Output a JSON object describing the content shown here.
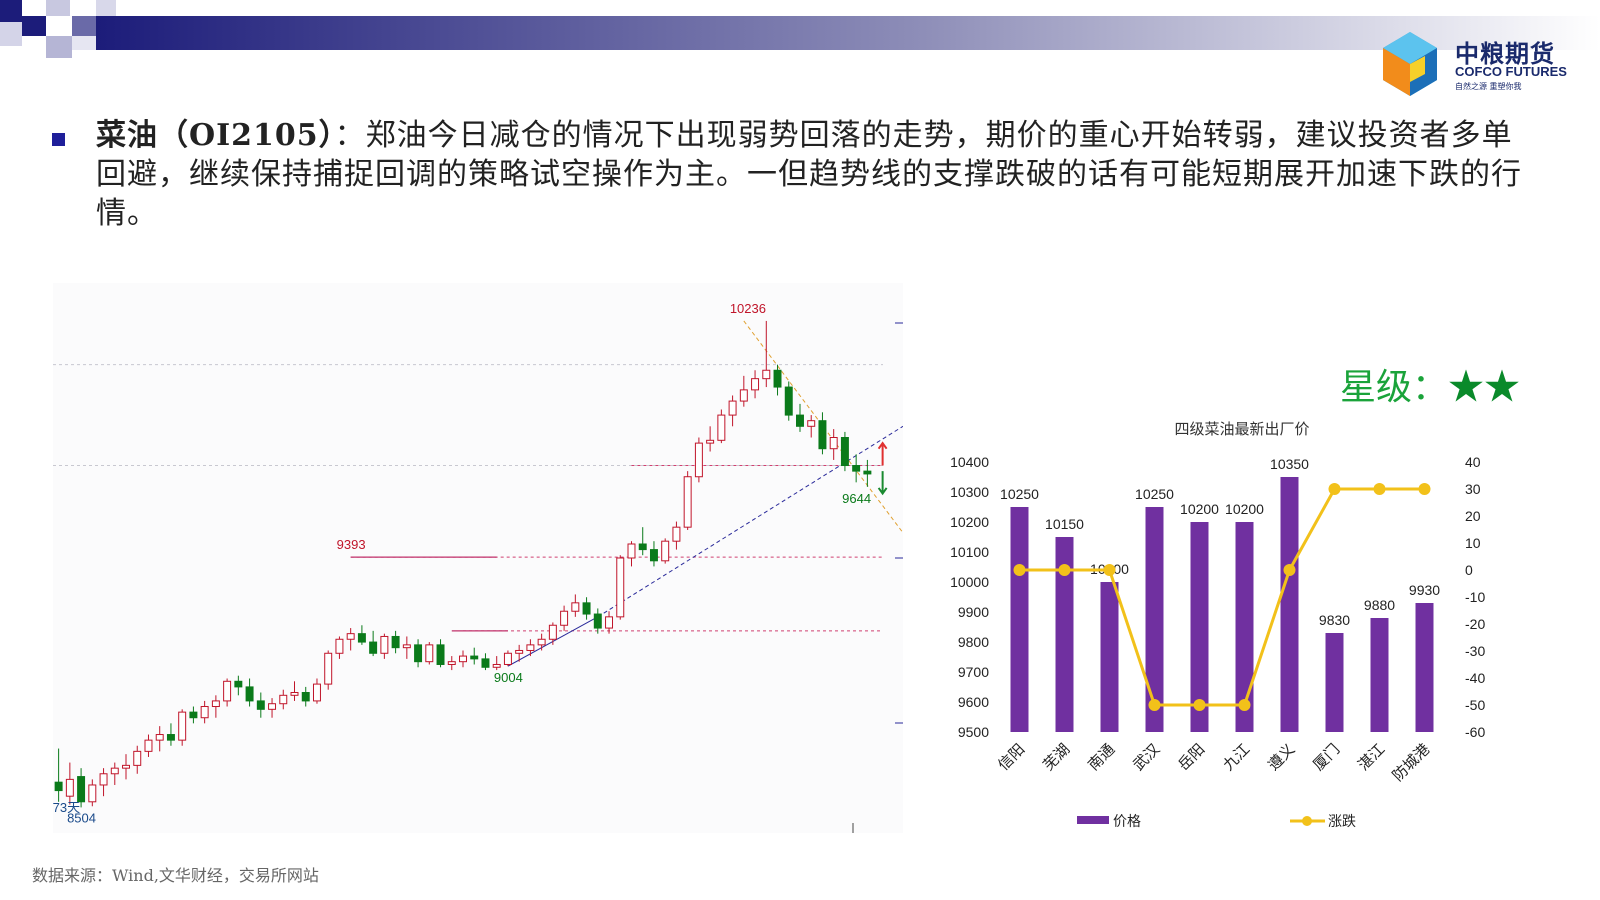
{
  "brand": {
    "name_cn": "中粮期货",
    "name_en": "COFCO FUTURES",
    "slogan": "自然之源 重塑你我"
  },
  "commentary": {
    "keyword": "菜油（OI2105）",
    "text": "：郑油今日减仓的情况下出现弱势回落的走势，期价的重心开始转弱，建议投资者多单回避，继续保持捕捉回调的策略试空操作为主。一但趋势线的支撑跌破的话有可能短期展开加速下跌的行情。"
  },
  "rating": {
    "label": "星级：",
    "stars": "★★"
  },
  "source": "数据来源：Wind,文华财经，交易所网站",
  "colors": {
    "up": "#c0152a",
    "down": "#0a7a1a",
    "bar": "#7030a0",
    "line": "#f2c11a",
    "bullet": "#1f1f9a"
  },
  "chart_data": [
    {
      "type": "candlestick",
      "annotations": [
        {
          "label": "10236",
          "x": 61,
          "y": 10236
        },
        {
          "label": "9393",
          "x": 26,
          "y": 9393
        },
        {
          "label": "9004",
          "x": 40,
          "y": 9004
        },
        {
          "label": "9644",
          "x": 71,
          "y": 9644
        },
        {
          "label": "8504",
          "x": 2,
          "y": 8504
        },
        {
          "label": "73天",
          "x": 0,
          "y": 8540
        }
      ],
      "ylim": [
        8480,
        10300
      ],
      "candles": [
        [
          8590,
          8710,
          8520,
          8560
        ],
        [
          8540,
          8660,
          8510,
          8600
        ],
        [
          8610,
          8640,
          8500,
          8520
        ],
        [
          8520,
          8600,
          8504,
          8580
        ],
        [
          8580,
          8640,
          8540,
          8620
        ],
        [
          8620,
          8660,
          8580,
          8640
        ],
        [
          8640,
          8690,
          8600,
          8650
        ],
        [
          8650,
          8720,
          8620,
          8700
        ],
        [
          8700,
          8760,
          8680,
          8740
        ],
        [
          8740,
          8790,
          8700,
          8760
        ],
        [
          8760,
          8800,
          8720,
          8740
        ],
        [
          8740,
          8850,
          8720,
          8840
        ],
        [
          8840,
          8860,
          8800,
          8820
        ],
        [
          8820,
          8880,
          8800,
          8860
        ],
        [
          8860,
          8900,
          8820,
          8880
        ],
        [
          8880,
          8960,
          8860,
          8950
        ],
        [
          8950,
          8970,
          8900,
          8930
        ],
        [
          8930,
          8960,
          8860,
          8880
        ],
        [
          8880,
          8910,
          8820,
          8850
        ],
        [
          8850,
          8890,
          8820,
          8870
        ],
        [
          8870,
          8920,
          8850,
          8900
        ],
        [
          8900,
          8950,
          8880,
          8910
        ],
        [
          8910,
          8930,
          8860,
          8880
        ],
        [
          8880,
          8960,
          8870,
          8940
        ],
        [
          8940,
          9060,
          8920,
          9050
        ],
        [
          9050,
          9110,
          9030,
          9100
        ],
        [
          9100,
          9140,
          9060,
          9120
        ],
        [
          9120,
          9150,
          9080,
          9090
        ],
        [
          9090,
          9130,
          9040,
          9050
        ],
        [
          9050,
          9120,
          9030,
          9110
        ],
        [
          9110,
          9130,
          9050,
          9070
        ],
        [
          9070,
          9110,
          9030,
          9080
        ],
        [
          9080,
          9100,
          9000,
          9020
        ],
        [
          9020,
          9090,
          9010,
          9080
        ],
        [
          9080,
          9100,
          9000,
          9010
        ],
        [
          9010,
          9040,
          8990,
          9020
        ],
        [
          9020,
          9060,
          9000,
          9040
        ],
        [
          9040,
          9070,
          9010,
          9030
        ],
        [
          9030,
          9050,
          8990,
          9000
        ],
        [
          9000,
          9040,
          8990,
          9010
        ],
        [
          9010,
          9060,
          9004,
          9050
        ],
        [
          9050,
          9080,
          9020,
          9060
        ],
        [
          9060,
          9100,
          9040,
          9080
        ],
        [
          9080,
          9120,
          9060,
          9100
        ],
        [
          9100,
          9160,
          9080,
          9150
        ],
        [
          9150,
          9220,
          9130,
          9200
        ],
        [
          9200,
          9260,
          9180,
          9230
        ],
        [
          9230,
          9250,
          9170,
          9190
        ],
        [
          9190,
          9210,
          9120,
          9140
        ],
        [
          9140,
          9200,
          9120,
          9180
        ],
        [
          9180,
          9400,
          9170,
          9390
        ],
        [
          9390,
          9450,
          9360,
          9440
        ],
        [
          9440,
          9500,
          9400,
          9420
        ],
        [
          9420,
          9450,
          9360,
          9380
        ],
        [
          9380,
          9460,
          9370,
          9450
        ],
        [
          9450,
          9520,
          9420,
          9500
        ],
        [
          9500,
          9700,
          9490,
          9680
        ],
        [
          9680,
          9820,
          9660,
          9800
        ],
        [
          9800,
          9860,
          9770,
          9810
        ],
        [
          9810,
          9920,
          9800,
          9900
        ],
        [
          9900,
          9970,
          9860,
          9950
        ],
        [
          9950,
          10040,
          9930,
          9990
        ],
        [
          9990,
          10060,
          9960,
          10030
        ],
        [
          10030,
          10236,
          10000,
          10060
        ],
        [
          10060,
          10080,
          9970,
          10000
        ],
        [
          10000,
          10020,
          9880,
          9900
        ],
        [
          9900,
          9940,
          9840,
          9860
        ],
        [
          9860,
          9900,
          9820,
          9880
        ],
        [
          9880,
          9910,
          9760,
          9780
        ],
        [
          9780,
          9850,
          9740,
          9820
        ],
        [
          9820,
          9840,
          9700,
          9720
        ],
        [
          9720,
          9760,
          9660,
          9700
        ],
        [
          9700,
          9740,
          9644,
          9690
        ]
      ]
    },
    {
      "type": "bar",
      "title": "四级菜油最新出厂价",
      "categories": [
        "信阳",
        "芜湖",
        "南通",
        "武汉",
        "岳阳",
        "九江",
        "遵义",
        "厦门",
        "湛江",
        "防城港"
      ],
      "series": [
        {
          "name": "价格",
          "type": "bar",
          "axis": "left",
          "values": [
            10250,
            10150,
            10000,
            10250,
            10200,
            10200,
            10350,
            9830,
            9880,
            9930
          ]
        },
        {
          "name": "涨跌",
          "type": "line",
          "axis": "right",
          "values": [
            0,
            0,
            0,
            -50,
            -50,
            -50,
            0,
            30,
            30,
            30
          ]
        }
      ],
      "y_left": {
        "ticks": [
          "10400",
          "10300",
          "10200",
          "10100",
          "10000",
          "9900",
          "9800",
          "9700",
          "9600",
          "9500"
        ],
        "ylim": [
          9500,
          10400
        ]
      },
      "y_right": {
        "ticks": [
          "40",
          "30",
          "20",
          "10",
          "0",
          "-10",
          "-20",
          "-30",
          "-40",
          "-50",
          "-60"
        ],
        "ylim": [
          -60,
          40
        ]
      },
      "legend": "bottom"
    }
  ]
}
